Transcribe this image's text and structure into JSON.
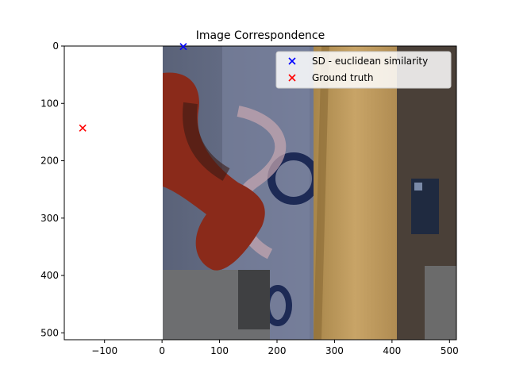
{
  "chart_data": {
    "type": "scatter",
    "title": "Image Correspondence",
    "xlabel": "",
    "ylabel": "",
    "xlim": [
      -170,
      512
    ],
    "ylim": [
      512,
      0
    ],
    "y_inverted": true,
    "xticks": [
      -100,
      0,
      100,
      200,
      300,
      400,
      500
    ],
    "yticks": [
      0,
      100,
      200,
      300,
      400,
      500
    ],
    "xtick_labels": [
      "−100",
      "0",
      "100",
      "200",
      "300",
      "400",
      "500"
    ],
    "ytick_labels": [
      "0",
      "100",
      "200",
      "300",
      "400",
      "500"
    ],
    "grid": false,
    "legend_position": "upper right",
    "background_image": {
      "x_extent": [
        0,
        512
      ],
      "y_extent": [
        0,
        512
      ],
      "description_icon": "rendered-scene-image"
    },
    "series": [
      {
        "name": "SD - euclidean similarity",
        "marker": "x",
        "color": "#0000ff",
        "points": [
          {
            "x": 37,
            "y": 1
          }
        ]
      },
      {
        "name": "Ground truth",
        "marker": "x",
        "color": "#ff0000",
        "points": [
          {
            "x": -138,
            "y": 143
          }
        ]
      }
    ]
  }
}
